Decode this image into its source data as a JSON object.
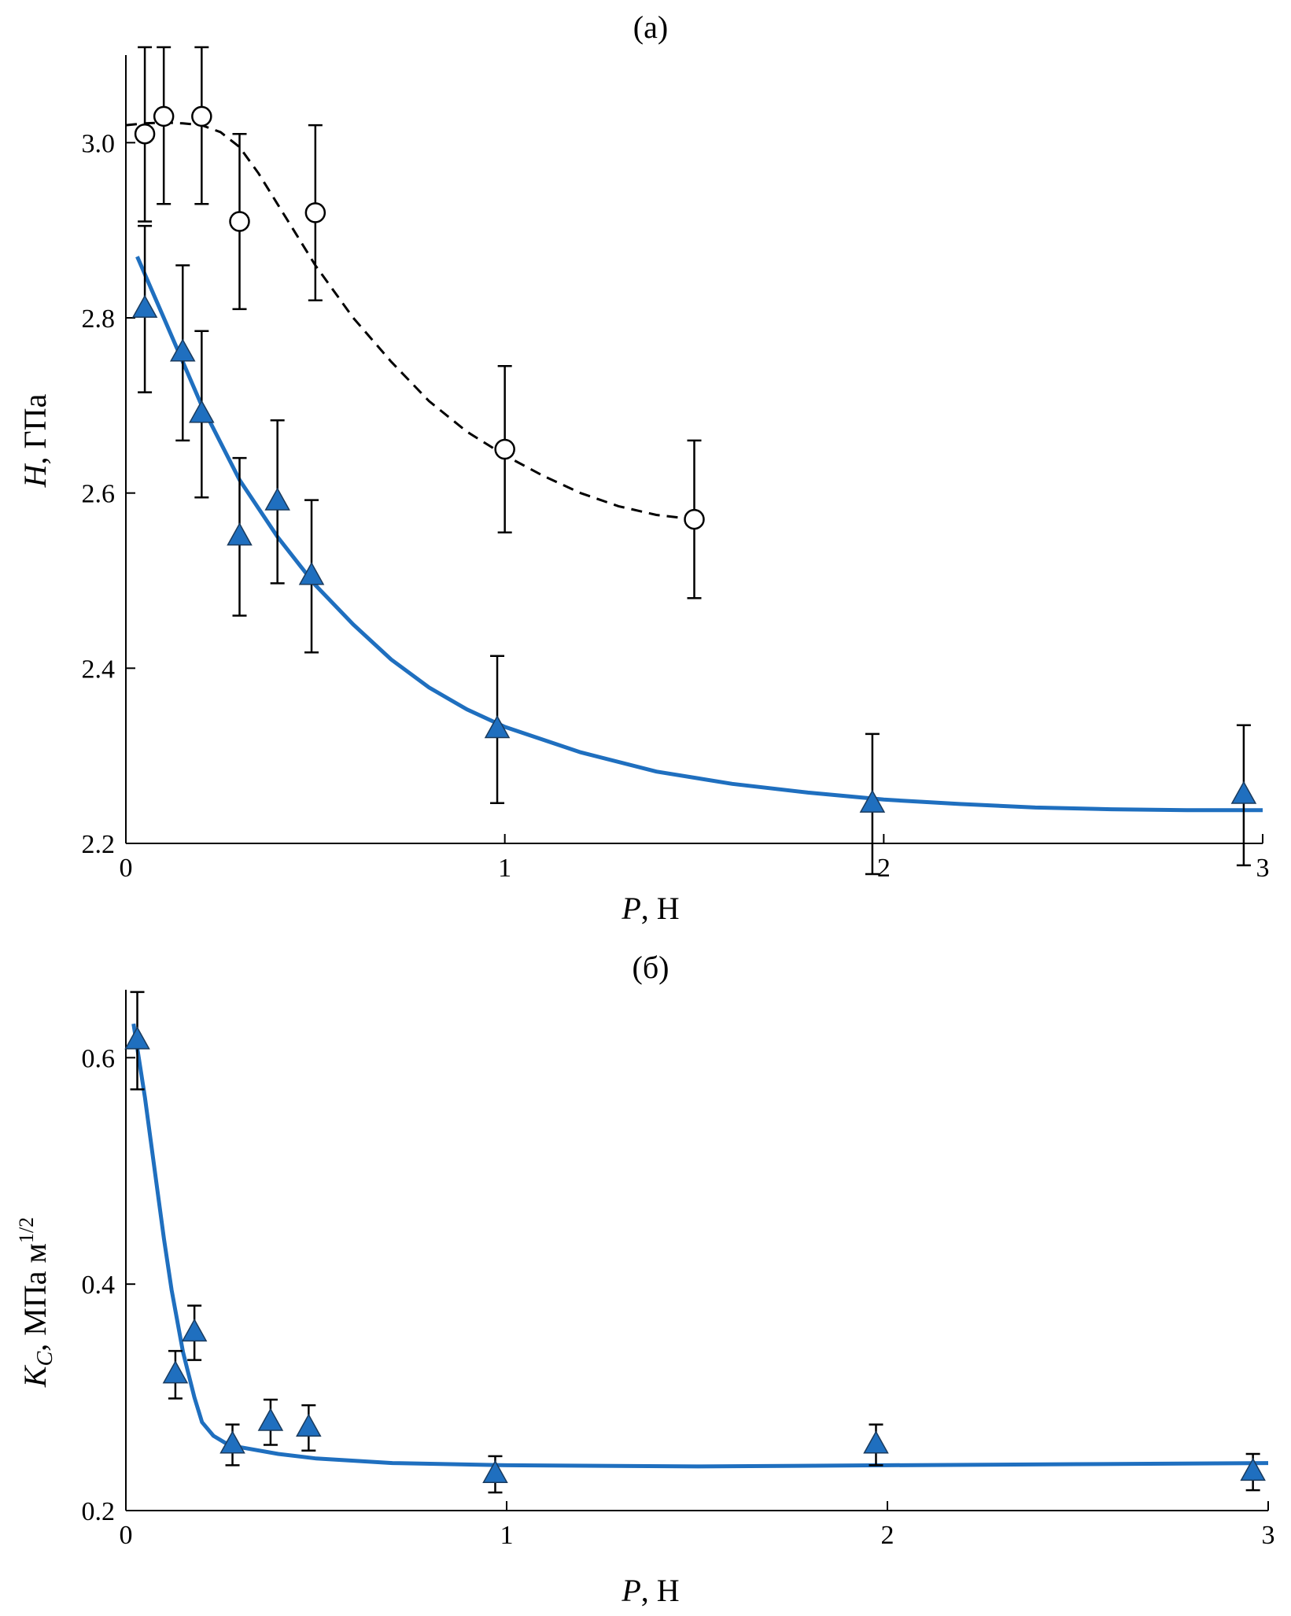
{
  "figure": {
    "colors": {
      "series_blue": "#1f6fbf",
      "marker_edge": "#1a3a5c",
      "axis": "#000000",
      "error_bar": "#000000"
    }
  },
  "chart_data": [
    {
      "type": "scatter",
      "panel_label": "(a)",
      "xlabel_var": "P",
      "xlabel_unit": ", Н",
      "ylabel_var": "H",
      "ylabel_unit": ", ГПа",
      "xlim": [
        0,
        3
      ],
      "ylim": [
        2.2,
        3.1
      ],
      "xticks": [
        0,
        1,
        2,
        3
      ],
      "xtick_labels": [
        "0",
        "1",
        "2",
        "3"
      ],
      "yticks": [
        2.2,
        2.4,
        2.6,
        2.8,
        3.0
      ],
      "ytick_labels": [
        "2.2",
        "2.4",
        "2.6",
        "2.8",
        "3.0"
      ],
      "series": [
        {
          "name": "open circles",
          "marker": "circle-open",
          "x": [
            0.05,
            0.1,
            0.2,
            0.3,
            0.5,
            1.0,
            1.5
          ],
          "y": [
            3.01,
            3.03,
            3.03,
            2.91,
            2.92,
            2.65,
            2.57
          ],
          "err": [
            0.1,
            0.1,
            0.1,
            0.1,
            0.1,
            0.095,
            0.09
          ]
        },
        {
          "name": "blue triangles",
          "marker": "triangle-filled",
          "x": [
            0.05,
            0.15,
            0.2,
            0.3,
            0.4,
            0.49,
            0.98,
            1.97,
            2.95
          ],
          "y": [
            2.81,
            2.76,
            2.69,
            2.55,
            2.59,
            2.505,
            2.33,
            2.245,
            2.255
          ],
          "err": [
            0.095,
            0.1,
            0.095,
            0.09,
            0.093,
            0.087,
            0.084,
            0.08,
            0.08
          ]
        }
      ],
      "curves": [
        {
          "name": "dashed fit",
          "style": "dashed",
          "x": [
            0.0,
            0.05,
            0.1,
            0.15,
            0.2,
            0.25,
            0.3,
            0.35,
            0.4,
            0.45,
            0.5,
            0.55,
            0.6,
            0.7,
            0.8,
            0.9,
            1.0,
            1.1,
            1.2,
            1.3,
            1.4,
            1.5
          ],
          "y": [
            3.02,
            3.022,
            3.023,
            3.022,
            3.02,
            3.012,
            2.995,
            2.965,
            2.93,
            2.895,
            2.86,
            2.83,
            2.8,
            2.75,
            2.705,
            2.67,
            2.643,
            2.62,
            2.6,
            2.585,
            2.575,
            2.57
          ]
        },
        {
          "name": "blue fit",
          "style": "solid",
          "x": [
            0.03,
            0.1,
            0.2,
            0.3,
            0.4,
            0.5,
            0.6,
            0.7,
            0.8,
            0.9,
            1.0,
            1.2,
            1.4,
            1.6,
            1.8,
            2.0,
            2.2,
            2.4,
            2.6,
            2.8,
            3.0
          ],
          "y": [
            2.87,
            2.8,
            2.7,
            2.615,
            2.55,
            2.495,
            2.45,
            2.41,
            2.378,
            2.353,
            2.333,
            2.304,
            2.282,
            2.268,
            2.258,
            2.25,
            2.245,
            2.241,
            2.239,
            2.238,
            2.238
          ]
        }
      ]
    },
    {
      "type": "scatter",
      "panel_label": "(б)",
      "xlabel_var": "P",
      "xlabel_unit": ", Н",
      "ylabel_var": "K",
      "ylabel_sub": "C",
      "ylabel_unit": ", МПа м",
      "ylabel_sup": "1/2",
      "xlim": [
        0,
        3
      ],
      "ylim": [
        0.2,
        0.66
      ],
      "xticks": [
        0,
        1,
        2,
        3
      ],
      "xtick_labels": [
        "0",
        "1",
        "2",
        "3"
      ],
      "yticks": [
        0.2,
        0.4,
        0.6
      ],
      "ytick_labels": [
        "0.2",
        "0.4",
        "0.6"
      ],
      "series": [
        {
          "name": "blue triangles",
          "marker": "triangle-filled",
          "x": [
            0.03,
            0.13,
            0.18,
            0.28,
            0.38,
            0.48,
            0.97,
            1.97,
            2.96
          ],
          "y": [
            0.615,
            0.32,
            0.357,
            0.258,
            0.278,
            0.273,
            0.232,
            0.258,
            0.234
          ],
          "err": [
            0.043,
            0.021,
            0.024,
            0.018,
            0.02,
            0.02,
            0.016,
            0.018,
            0.016
          ]
        }
      ],
      "curves": [
        {
          "name": "blue fit",
          "style": "solid",
          "x": [
            0.02,
            0.05,
            0.08,
            0.1,
            0.12,
            0.15,
            0.18,
            0.2,
            0.23,
            0.26,
            0.3,
            0.4,
            0.5,
            0.7,
            1.0,
            1.5,
            2.0,
            2.5,
            3.0
          ],
          "y": [
            0.63,
            0.565,
            0.49,
            0.44,
            0.395,
            0.34,
            0.3,
            0.278,
            0.266,
            0.26,
            0.256,
            0.25,
            0.246,
            0.242,
            0.24,
            0.239,
            0.24,
            0.241,
            0.242
          ]
        }
      ]
    }
  ]
}
